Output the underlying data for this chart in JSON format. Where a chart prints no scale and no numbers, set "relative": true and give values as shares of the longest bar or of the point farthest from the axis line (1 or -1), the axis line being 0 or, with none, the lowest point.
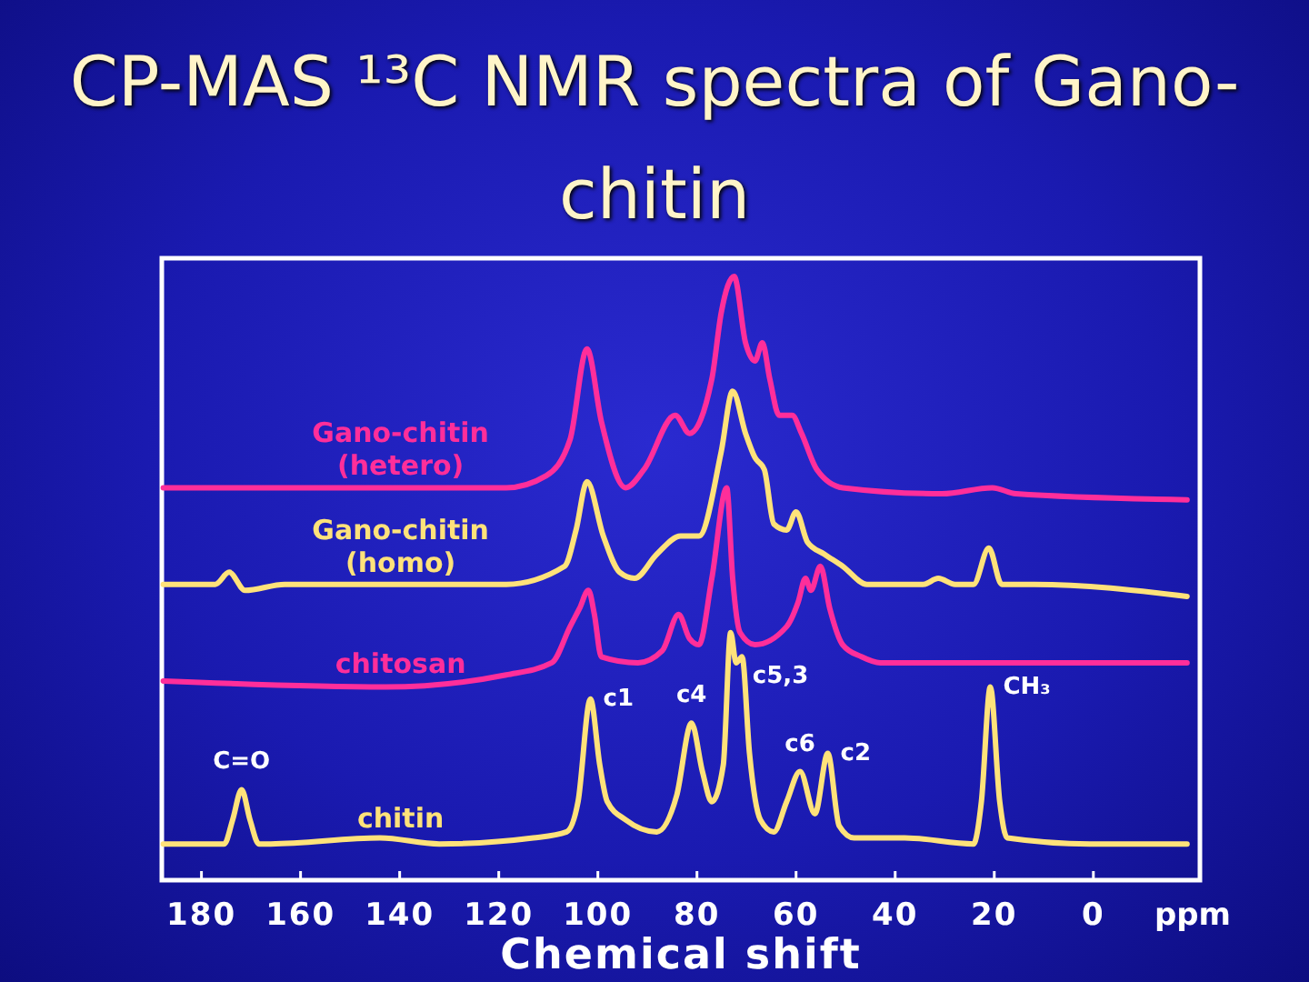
{
  "chart_data": {
    "type": "line",
    "title": "CP-MAS ¹³C NMR spectra of Gano-chitin",
    "xlabel": "Chemical shift",
    "relative": true,
    "xlim": [
      188,
      -21.5
    ],
    "xticks": [
      180,
      160,
      140,
      120,
      100,
      80,
      60,
      40,
      20,
      0
    ],
    "series": [
      {
        "name": "Gano-chitin (hetero)",
        "color": "#ff2e9a",
        "x": [
          187.7,
          149.1,
          118.5,
          110.4,
          105.6,
          102.2,
          99.3,
          94.4,
          90.7,
          84.4,
          81.5,
          77,
          75.1,
          72.5,
          70.2,
          68.3,
          66.8,
          65.3,
          63.4,
          60.8,
          58.9,
          55.8,
          50.6,
          30.6,
          20.4,
          15.6,
          -18.9
        ],
        "values": [
          0.65,
          0.65,
          0.65,
          0.67,
          0.73,
          0.88,
          0.76,
          0.65,
          0.68,
          0.77,
          0.74,
          0.83,
          0.94,
          1.0,
          0.89,
          0.86,
          0.89,
          0.83,
          0.77,
          0.77,
          0.74,
          0.68,
          0.65,
          0.64,
          0.65,
          0.64,
          0.63
        ]
      },
      {
        "name": "Gano-chitin (homo)",
        "color": "#ffe27a",
        "x": [
          187.7,
          177.2,
          174.4,
          171.2,
          163.2,
          118.5,
          106.7,
          104.4,
          102.2,
          98.9,
          95.6,
          92.6,
          88.1,
          83.3,
          79.6,
          75.1,
          72.8,
          70.2,
          68.3,
          66.4,
          64.5,
          61.9,
          60,
          57.7,
          54.3,
          50.6,
          45.7,
          34.3,
          31.3,
          27.9,
          24.2,
          21.1,
          18.5,
          11.9,
          -18.9
        ],
        "values": [
          0.49,
          0.49,
          0.51,
          0.48,
          0.49,
          0.49,
          0.52,
          0.58,
          0.66,
          0.57,
          0.51,
          0.5,
          0.54,
          0.57,
          0.57,
          0.71,
          0.81,
          0.74,
          0.7,
          0.68,
          0.59,
          0.58,
          0.61,
          0.56,
          0.54,
          0.52,
          0.49,
          0.49,
          0.5,
          0.49,
          0.49,
          0.55,
          0.49,
          0.49,
          0.47
        ]
      },
      {
        "name": "chitosan",
        "color": "#ff2e9a",
        "x": [
          187.7,
          142.8,
          118.5,
          109.3,
          105.6,
          103.7,
          101.9,
          100.7,
          99.3,
          91.9,
          87,
          83.7,
          81.5,
          79.6,
          77,
          74,
          72.8,
          71.3,
          68.3,
          61.9,
          59.6,
          58.1,
          57,
          55.1,
          53.2,
          50.6,
          46.8,
          43,
          -18.9
        ],
        "values": [
          0.33,
          0.32,
          0.34,
          0.36,
          0.42,
          0.45,
          0.48,
          0.44,
          0.37,
          0.36,
          0.38,
          0.44,
          0.4,
          0.39,
          0.5,
          0.65,
          0.5,
          0.41,
          0.39,
          0.42,
          0.46,
          0.5,
          0.48,
          0.52,
          0.45,
          0.39,
          0.37,
          0.36,
          0.36
        ]
      },
      {
        "name": "chitin",
        "color": "#ffe27a",
        "x": [
          187.7,
          175.4,
          173.7,
          171.9,
          170.2,
          168.4,
          166,
          144,
          132,
          113,
          106.3,
          104,
          101.5,
          99.6,
          98.1,
          94.4,
          88.1,
          84.1,
          81.1,
          78.9,
          77,
          74.7,
          73.2,
          72.1,
          70.9,
          69.4,
          67.2,
          64.5,
          61.9,
          59.2,
          56.2,
          53.6,
          51.3,
          48.3,
          38.1,
          24.2,
          22.6,
          20.8,
          18.9,
          17.4,
          0.7,
          -18.9
        ],
        "values": [
          0.06,
          0.06,
          0.1,
          0.15,
          0.1,
          0.06,
          0.06,
          0.07,
          0.06,
          0.07,
          0.08,
          0.13,
          0.3,
          0.19,
          0.13,
          0.1,
          0.08,
          0.14,
          0.26,
          0.18,
          0.13,
          0.19,
          0.41,
          0.36,
          0.37,
          0.21,
          0.1,
          0.08,
          0.13,
          0.18,
          0.11,
          0.21,
          0.09,
          0.07,
          0.07,
          0.06,
          0.13,
          0.32,
          0.13,
          0.07,
          0.06,
          0.06
        ]
      }
    ],
    "annotations": [
      {
        "text": "C=O",
        "x": 171.9,
        "y": 0.15
      },
      {
        "text": "c1",
        "x": 101.5,
        "y": 0.3
      },
      {
        "text": "c4",
        "x": 81.1,
        "y": 0.26
      },
      {
        "text": "c5,3",
        "x": 73.2,
        "y": 0.41
      },
      {
        "text": "c6",
        "x": 59.2,
        "y": 0.18
      },
      {
        "text": "c2",
        "x": 53.6,
        "y": 0.21
      },
      {
        "text": "CH₃",
        "x": 20.8,
        "y": 0.32
      },
      "ppm"
    ]
  }
}
